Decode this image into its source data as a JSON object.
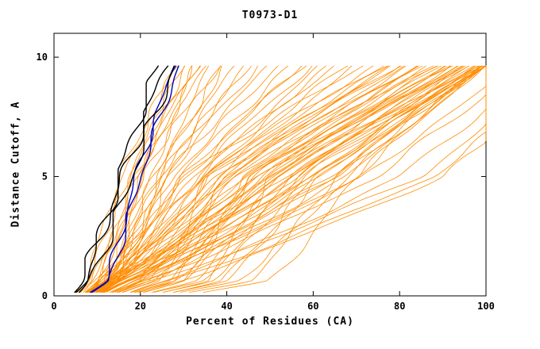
{
  "chart_data": {
    "type": "line",
    "title": "T0973-D1",
    "xlabel": "Percent of Residues (CA)",
    "ylabel": "Distance Cutoff, A",
    "xlim": [
      0,
      100
    ],
    "ylim": [
      0,
      10
    ],
    "xticks": [
      0,
      20,
      40,
      60,
      80,
      100
    ],
    "yticks": [
      0,
      5,
      10
    ],
    "grid": false,
    "legend": "none",
    "colors": {
      "ensemble": "#FF8C00",
      "highlight": "#0000BB",
      "reference": "#000000"
    },
    "series_note": "each curve given as [percent_at_cutoff0, percent_at_cutoff5, percent_at_cutoff10]",
    "ensemble_curves": [
      [
        10,
        18,
        30
      ],
      [
        11,
        19,
        32
      ],
      [
        12,
        20,
        33
      ],
      [
        10,
        21,
        35
      ],
      [
        12,
        22,
        36
      ],
      [
        11,
        20,
        34
      ],
      [
        13,
        23,
        38
      ],
      [
        12,
        24,
        40
      ],
      [
        14,
        25,
        42
      ],
      [
        13,
        26,
        44
      ],
      [
        14,
        24,
        39
      ],
      [
        15,
        27,
        45
      ],
      [
        10,
        24,
        48
      ],
      [
        12,
        26,
        50
      ],
      [
        11,
        28,
        52
      ],
      [
        13,
        29,
        55
      ],
      [
        12,
        30,
        58
      ],
      [
        14,
        32,
        60
      ],
      [
        13,
        34,
        62
      ],
      [
        15,
        35,
        65
      ],
      [
        12,
        33,
        64
      ],
      [
        14,
        36,
        68
      ],
      [
        11,
        31,
        57
      ],
      [
        15,
        38,
        70
      ],
      [
        10,
        30,
        72
      ],
      [
        12,
        34,
        75
      ],
      [
        13,
        36,
        78
      ],
      [
        11,
        38,
        80
      ],
      [
        14,
        40,
        82
      ],
      [
        12,
        42,
        85
      ],
      [
        15,
        44,
        87
      ],
      [
        13,
        46,
        90
      ],
      [
        14,
        48,
        92
      ],
      [
        12,
        50,
        94
      ],
      [
        15,
        52,
        96
      ],
      [
        13,
        54,
        98
      ],
      [
        14,
        56,
        100
      ],
      [
        11,
        45,
        88
      ],
      [
        12,
        47,
        91
      ],
      [
        16,
        55,
        99
      ],
      [
        15,
        50,
        95
      ],
      [
        13,
        40,
        83
      ],
      [
        16,
        58,
        100
      ],
      [
        14,
        60,
        100
      ],
      [
        12,
        52,
        97
      ],
      [
        15,
        62,
        100
      ],
      [
        17,
        65,
        100
      ],
      [
        16,
        48,
        93
      ],
      [
        18,
        60,
        100
      ],
      [
        17,
        55,
        98
      ],
      [
        19,
        68,
        100
      ],
      [
        18,
        64,
        100
      ],
      [
        20,
        70,
        100
      ],
      [
        16,
        66,
        100
      ],
      [
        30,
        45,
        85
      ],
      [
        35,
        50,
        90
      ],
      [
        25,
        40,
        80
      ],
      [
        28,
        48,
        92
      ],
      [
        32,
        55,
        95
      ],
      [
        22,
        38,
        78
      ],
      [
        26,
        44,
        86
      ],
      [
        20,
        36,
        76
      ],
      [
        24,
        50,
        93
      ],
      [
        36,
        58,
        97
      ],
      [
        40,
        60,
        98
      ],
      [
        45,
        65,
        100
      ],
      [
        38,
        62,
        99
      ],
      [
        50,
        70,
        100
      ],
      [
        42,
        68,
        100
      ],
      [
        30,
        52,
        94
      ],
      [
        34,
        56,
        96
      ],
      [
        27,
        46,
        89
      ],
      [
        21,
        42,
        84
      ],
      [
        23,
        39,
        79
      ],
      [
        8,
        16,
        28
      ],
      [
        9,
        17,
        31
      ],
      [
        7,
        15,
        29
      ],
      [
        9,
        19,
        33
      ],
      [
        20,
        75,
        110
      ],
      [
        25,
        80,
        115
      ],
      [
        22,
        85,
        120
      ],
      [
        28,
        90,
        125
      ],
      [
        18,
        72,
        108
      ],
      [
        26,
        88,
        122
      ]
    ],
    "highlight_curves": [
      [
        12,
        19,
        28
      ],
      [
        12.5,
        20,
        29
      ]
    ],
    "reference_curves": [
      [
        6,
        16,
        26
      ],
      [
        8,
        18,
        28
      ],
      [
        7,
        15,
        24
      ]
    ]
  }
}
